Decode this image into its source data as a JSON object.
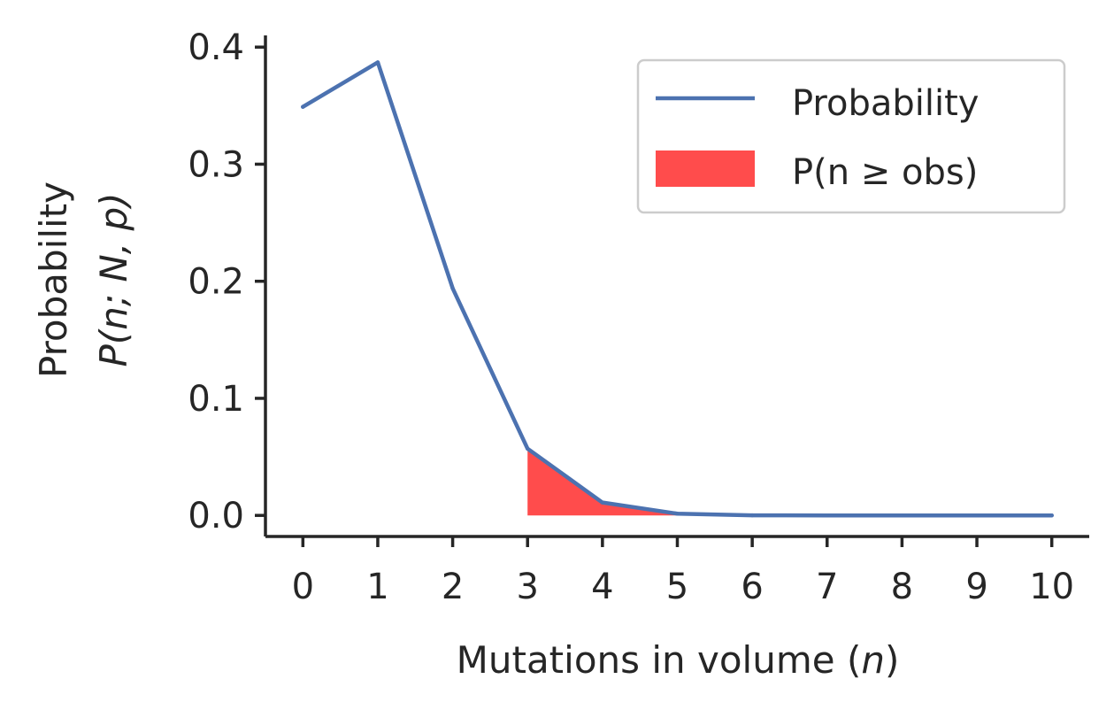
{
  "chart_data": {
    "type": "line",
    "x": [
      0,
      1,
      2,
      3,
      4,
      5,
      6,
      7,
      8,
      9,
      10
    ],
    "series": [
      {
        "name": "Probability",
        "values": [
          0.349,
          0.387,
          0.194,
          0.057,
          0.011,
          0.0015,
          0.0001,
          0.0,
          0.0,
          0.0,
          0.0
        ],
        "color": "#4c72b0"
      }
    ],
    "shaded_region": {
      "name": "P(n ≥ obs)",
      "x_from": 3,
      "x_to": 10,
      "color": "#ff4c4c"
    },
    "xlim": [
      -0.5,
      10.5
    ],
    "ylim": [
      -0.018,
      0.41
    ],
    "xticks": [
      0,
      1,
      2,
      3,
      4,
      5,
      6,
      7,
      8,
      9,
      10
    ],
    "xtick_labels": [
      "0",
      "1",
      "2",
      "3",
      "4",
      "5",
      "6",
      "7",
      "8",
      "9",
      "10"
    ],
    "yticks": [
      0.0,
      0.1,
      0.2,
      0.3,
      0.4
    ],
    "ytick_labels": [
      "0.0",
      "0.1",
      "0.2",
      "0.3",
      "0.4"
    ],
    "xlabel": {
      "text": "Mutations in volume (",
      "var": "n",
      "close": ")"
    },
    "ylabel": {
      "line1": "Probability",
      "line2": "P(n; N, p)"
    },
    "grid": false,
    "legend": {
      "placement": "top-right",
      "entries": [
        "Probability",
        "P(n ≥ obs)"
      ]
    }
  }
}
